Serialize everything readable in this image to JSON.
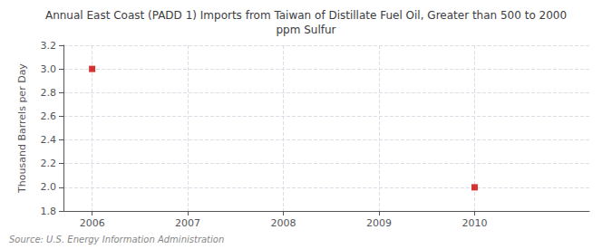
{
  "chart_data": {
    "type": "scatter",
    "title": "Annual East Coast (PADD 1) Imports from Taiwan of Distillate Fuel Oil, Greater than 500 to 2000\nppm Sulfur",
    "ylabel": "Thousand Barrels per Day",
    "source": "Source: U.S. Energy Information Administration",
    "x": [
      2006,
      2010
    ],
    "values": [
      3.0,
      2.0
    ],
    "color": "#cc0000",
    "marker": "square",
    "xlim": [
      2005.7,
      2011.2
    ],
    "ylim": [
      1.8,
      3.2
    ],
    "xticks": [
      2006,
      2007,
      2008,
      2009,
      2010
    ],
    "yticks": [
      1.8,
      {
        "value": 2.0,
        "label": "2.0"
      },
      2.2,
      2.4,
      2.6,
      2.8,
      {
        "value": 3.0,
        "label": "3.0"
      },
      3.2
    ],
    "grid": true
  }
}
